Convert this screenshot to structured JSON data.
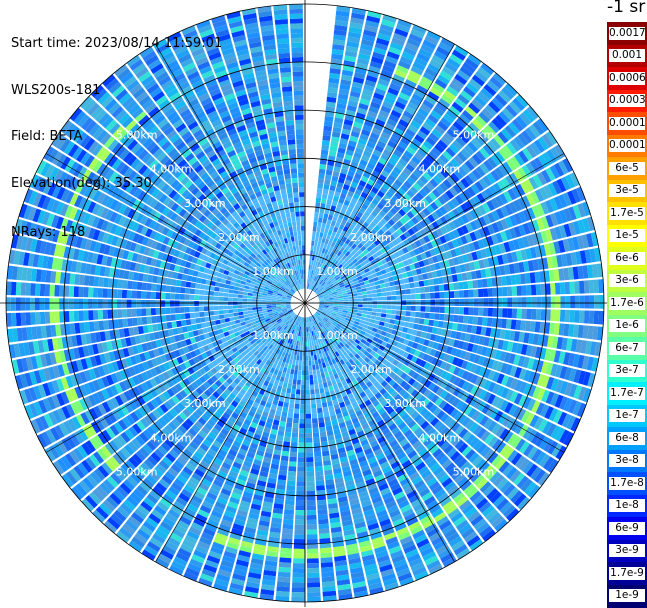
{
  "header": {
    "start_time": "Start time: 2023/08/14 11:59:01",
    "instrument": "WLS200s-181",
    "field": "Field: BETA",
    "elevation": "Elevation(deg): 35.30",
    "nrays": "NRays: 118"
  },
  "colorbar": {
    "unit": "-1 sr",
    "labels": [
      "0.0017",
      "0.001",
      "0.0006",
      "0.0003",
      "0.00017",
      "0.0001",
      "6e-5",
      "3e-5",
      "1.7e-5",
      "1e-5",
      "6e-6",
      "3e-6",
      "1.7e-6",
      "1e-6",
      "6e-7",
      "3e-7",
      "1.7e-7",
      "1e-7",
      "6e-8",
      "3e-8",
      "1.7e-8",
      "1e-8",
      "6e-9",
      "3e-9",
      "1.7e-9",
      "1e-9"
    ],
    "colors": [
      "#8b0000",
      "#b00000",
      "#dd0000",
      "#ff1a00",
      "#ff4d00",
      "#ff7a00",
      "#ff9f00",
      "#ffc000",
      "#ffe000",
      "#ffff00",
      "#e0ff1a",
      "#c0ff40",
      "#a0ff60",
      "#80ff80",
      "#5affa6",
      "#30ffd0",
      "#00f0ff",
      "#00c8ff",
      "#00a0ff",
      "#0078ff",
      "#0050ff",
      "#0028ff",
      "#0000ee",
      "#0000c0",
      "#000096",
      "#000070"
    ]
  },
  "chart_data": {
    "type": "heatmap",
    "projection": "polar PPI",
    "rings_km": [
      1,
      2,
      3,
      4,
      5
    ],
    "ring_labels": [
      "1.00km",
      "2.00km",
      "3.00km",
      "4.00km",
      "5.00km"
    ],
    "max_range_km": 6.2,
    "nrays": 118,
    "field": "BETA",
    "grid": true,
    "enhanced_band_km": [
      5.05,
      5.3
    ],
    "missing_sector_deg": [
      0,
      3
    ]
  }
}
